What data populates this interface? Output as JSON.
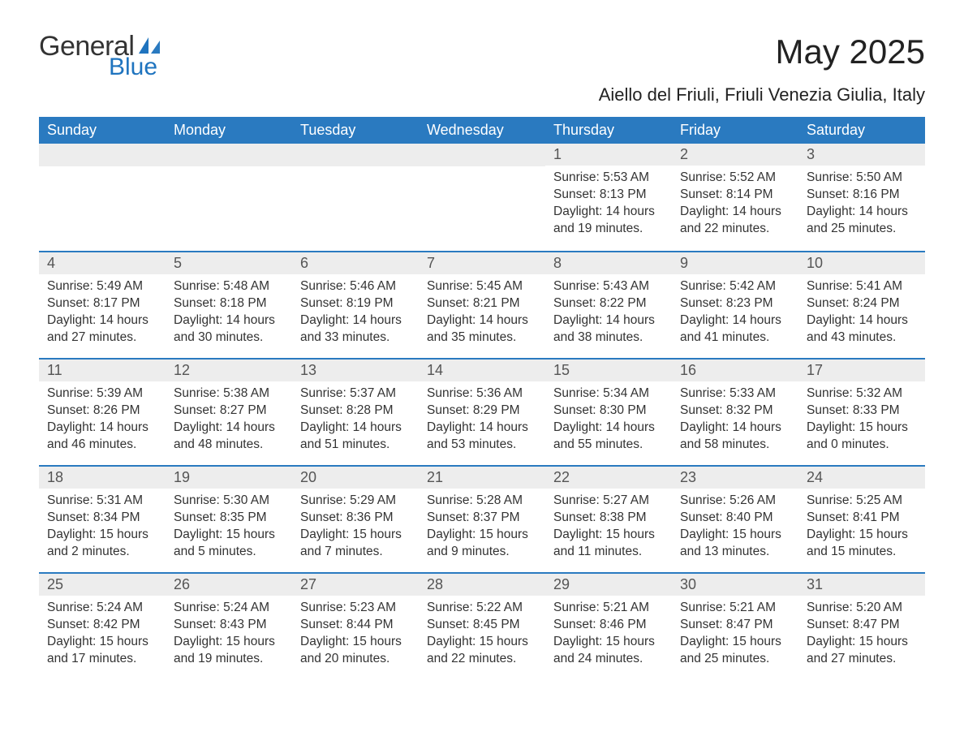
{
  "logo": {
    "text1": "General",
    "text2": "Blue"
  },
  "title": "May 2025",
  "subtitle": "Aiello del Friuli, Friuli Venezia Giulia, Italy",
  "colors": {
    "header_bg": "#2a7ac0",
    "header_text": "#ffffff",
    "daynum_bg": "#ededed",
    "daynum_text": "#555555",
    "body_text": "#333333",
    "border": "#2a7ac0",
    "logo_blue": "#1f74bf"
  },
  "weekdays": [
    "Sunday",
    "Monday",
    "Tuesday",
    "Wednesday",
    "Thursday",
    "Friday",
    "Saturday"
  ],
  "weeks": [
    [
      null,
      null,
      null,
      null,
      {
        "n": "1",
        "sunrise": "5:53 AM",
        "sunset": "8:13 PM",
        "daylight": "14 hours and 19 minutes."
      },
      {
        "n": "2",
        "sunrise": "5:52 AM",
        "sunset": "8:14 PM",
        "daylight": "14 hours and 22 minutes."
      },
      {
        "n": "3",
        "sunrise": "5:50 AM",
        "sunset": "8:16 PM",
        "daylight": "14 hours and 25 minutes."
      }
    ],
    [
      {
        "n": "4",
        "sunrise": "5:49 AM",
        "sunset": "8:17 PM",
        "daylight": "14 hours and 27 minutes."
      },
      {
        "n": "5",
        "sunrise": "5:48 AM",
        "sunset": "8:18 PM",
        "daylight": "14 hours and 30 minutes."
      },
      {
        "n": "6",
        "sunrise": "5:46 AM",
        "sunset": "8:19 PM",
        "daylight": "14 hours and 33 minutes."
      },
      {
        "n": "7",
        "sunrise": "5:45 AM",
        "sunset": "8:21 PM",
        "daylight": "14 hours and 35 minutes."
      },
      {
        "n": "8",
        "sunrise": "5:43 AM",
        "sunset": "8:22 PM",
        "daylight": "14 hours and 38 minutes."
      },
      {
        "n": "9",
        "sunrise": "5:42 AM",
        "sunset": "8:23 PM",
        "daylight": "14 hours and 41 minutes."
      },
      {
        "n": "10",
        "sunrise": "5:41 AM",
        "sunset": "8:24 PM",
        "daylight": "14 hours and 43 minutes."
      }
    ],
    [
      {
        "n": "11",
        "sunrise": "5:39 AM",
        "sunset": "8:26 PM",
        "daylight": "14 hours and 46 minutes."
      },
      {
        "n": "12",
        "sunrise": "5:38 AM",
        "sunset": "8:27 PM",
        "daylight": "14 hours and 48 minutes."
      },
      {
        "n": "13",
        "sunrise": "5:37 AM",
        "sunset": "8:28 PM",
        "daylight": "14 hours and 51 minutes."
      },
      {
        "n": "14",
        "sunrise": "5:36 AM",
        "sunset": "8:29 PM",
        "daylight": "14 hours and 53 minutes."
      },
      {
        "n": "15",
        "sunrise": "5:34 AM",
        "sunset": "8:30 PM",
        "daylight": "14 hours and 55 minutes."
      },
      {
        "n": "16",
        "sunrise": "5:33 AM",
        "sunset": "8:32 PM",
        "daylight": "14 hours and 58 minutes."
      },
      {
        "n": "17",
        "sunrise": "5:32 AM",
        "sunset": "8:33 PM",
        "daylight": "15 hours and 0 minutes."
      }
    ],
    [
      {
        "n": "18",
        "sunrise": "5:31 AM",
        "sunset": "8:34 PM",
        "daylight": "15 hours and 2 minutes."
      },
      {
        "n": "19",
        "sunrise": "5:30 AM",
        "sunset": "8:35 PM",
        "daylight": "15 hours and 5 minutes."
      },
      {
        "n": "20",
        "sunrise": "5:29 AM",
        "sunset": "8:36 PM",
        "daylight": "15 hours and 7 minutes."
      },
      {
        "n": "21",
        "sunrise": "5:28 AM",
        "sunset": "8:37 PM",
        "daylight": "15 hours and 9 minutes."
      },
      {
        "n": "22",
        "sunrise": "5:27 AM",
        "sunset": "8:38 PM",
        "daylight": "15 hours and 11 minutes."
      },
      {
        "n": "23",
        "sunrise": "5:26 AM",
        "sunset": "8:40 PM",
        "daylight": "15 hours and 13 minutes."
      },
      {
        "n": "24",
        "sunrise": "5:25 AM",
        "sunset": "8:41 PM",
        "daylight": "15 hours and 15 minutes."
      }
    ],
    [
      {
        "n": "25",
        "sunrise": "5:24 AM",
        "sunset": "8:42 PM",
        "daylight": "15 hours and 17 minutes."
      },
      {
        "n": "26",
        "sunrise": "5:24 AM",
        "sunset": "8:43 PM",
        "daylight": "15 hours and 19 minutes."
      },
      {
        "n": "27",
        "sunrise": "5:23 AM",
        "sunset": "8:44 PM",
        "daylight": "15 hours and 20 minutes."
      },
      {
        "n": "28",
        "sunrise": "5:22 AM",
        "sunset": "8:45 PM",
        "daylight": "15 hours and 22 minutes."
      },
      {
        "n": "29",
        "sunrise": "5:21 AM",
        "sunset": "8:46 PM",
        "daylight": "15 hours and 24 minutes."
      },
      {
        "n": "30",
        "sunrise": "5:21 AM",
        "sunset": "8:47 PM",
        "daylight": "15 hours and 25 minutes."
      },
      {
        "n": "31",
        "sunrise": "5:20 AM",
        "sunset": "8:47 PM",
        "daylight": "15 hours and 27 minutes."
      }
    ]
  ],
  "labels": {
    "sunrise": "Sunrise: ",
    "sunset": "Sunset: ",
    "daylight": "Daylight: "
  }
}
